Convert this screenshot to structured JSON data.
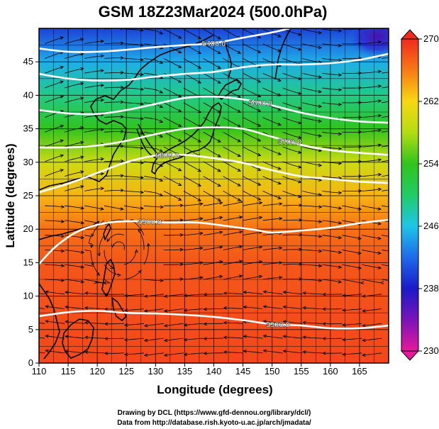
{
  "title": "GSM 18Z23Mar2024 (500.0hPa)",
  "xlabel": "Longitude (degrees)",
  "ylabel": "Latitude  (degrees)",
  "credits": [
    "Drawing by DCL (https://www.gfd-dennou.org/library/dcl/)",
    "Data from http://database.rish.kyoto-u.ac.jp/arch/jmadata/"
  ],
  "colors": {
    "contour": "#ffffff",
    "coast": "#000000",
    "streamline": "#000000",
    "grid": "#000000"
  },
  "chart_data": {
    "type": "heatmap",
    "xlim": [
      110,
      170
    ],
    "ylim": [
      0,
      50
    ],
    "x_ticks": [
      110,
      115,
      120,
      125,
      130,
      135,
      140,
      145,
      150,
      155,
      160,
      165
    ],
    "y_ticks": [
      0,
      5,
      10,
      15,
      20,
      25,
      30,
      35,
      40,
      45
    ],
    "grid": true,
    "fill_variable_range": [
      230,
      270
    ],
    "colorbar": {
      "ticks": [
        230,
        238,
        246,
        254,
        262,
        270
      ],
      "labels": [
        "230",
        "238",
        "246",
        "254",
        "262",
        "270"
      ],
      "stops": [
        {
          "v": 230,
          "c": "#e6199b"
        },
        {
          "v": 234,
          "c": "#7a14b8"
        },
        {
          "v": 238,
          "c": "#1a1ac8"
        },
        {
          "v": 242,
          "c": "#1f6aea"
        },
        {
          "v": 246,
          "c": "#1ec5e8"
        },
        {
          "v": 250,
          "c": "#22cc66"
        },
        {
          "v": 254,
          "c": "#30c41c"
        },
        {
          "v": 258,
          "c": "#b3dc12"
        },
        {
          "v": 262,
          "c": "#f7d812"
        },
        {
          "v": 266,
          "c": "#f77a14"
        },
        {
          "v": 270,
          "c": "#f02a1e"
        }
      ]
    },
    "field_profile": [
      {
        "lat": 0,
        "value": 268.5
      },
      {
        "lat": 5,
        "value": 268.3
      },
      {
        "lat": 10,
        "value": 268.0
      },
      {
        "lat": 15,
        "value": 267.8
      },
      {
        "lat": 20,
        "value": 266.5
      },
      {
        "lat": 25,
        "value": 263.5
      },
      {
        "lat": 30,
        "value": 259.5
      },
      {
        "lat": 35,
        "value": 254.0
      },
      {
        "lat": 40,
        "value": 249.0
      },
      {
        "lat": 45,
        "value": 245.0
      },
      {
        "lat": 50,
        "value": 240.0
      }
    ],
    "contours": [
      {
        "label": "5400.0",
        "label_lon": 140,
        "points": [
          [
            110,
            47
          ],
          [
            115,
            46.5
          ],
          [
            120,
            46.5
          ],
          [
            125,
            46.8
          ],
          [
            130,
            47.2
          ],
          [
            135,
            47.5
          ],
          [
            140,
            47.8
          ],
          [
            145,
            48.6
          ],
          [
            150,
            49.4
          ],
          [
            153,
            50
          ]
        ]
      },
      {
        "label": "",
        "label_lon": null,
        "points": [
          [
            110,
            43.2
          ],
          [
            115,
            42.5
          ],
          [
            120,
            42.2
          ],
          [
            125,
            42.3
          ],
          [
            130,
            42.8
          ],
          [
            135,
            43.2
          ],
          [
            140,
            43.5
          ],
          [
            145,
            44.2
          ],
          [
            150,
            44.6
          ],
          [
            155,
            44.6
          ],
          [
            160,
            44.8
          ],
          [
            165,
            45.3
          ],
          [
            170,
            46.2
          ]
        ]
      },
      {
        "label": "5600.0",
        "label_lon": 148,
        "points": [
          [
            110,
            37.8
          ],
          [
            115,
            37.3
          ],
          [
            120,
            37.2
          ],
          [
            125,
            37.8
          ],
          [
            130,
            38.7
          ],
          [
            135,
            39.6
          ],
          [
            140,
            39.8
          ],
          [
            145,
            39.4
          ],
          [
            150,
            38.5
          ],
          [
            155,
            37.4
          ],
          [
            160,
            36.6
          ],
          [
            165,
            36.1
          ],
          [
            170,
            35.9
          ]
        ]
      },
      {
        "label": "5700.0",
        "label_lon": 153,
        "points": [
          [
            110,
            32.2
          ],
          [
            115,
            32.2
          ],
          [
            120,
            32.5
          ],
          [
            125,
            33.2
          ],
          [
            130,
            34.2
          ],
          [
            135,
            35.0
          ],
          [
            140,
            35.2
          ],
          [
            145,
            35.0
          ],
          [
            150,
            33.8
          ],
          [
            155,
            32.6
          ],
          [
            160,
            31.8
          ],
          [
            165,
            31.4
          ],
          [
            170,
            31.1
          ]
        ]
      },
      {
        "label": "5800.0",
        "label_lon": 132,
        "points": [
          [
            110,
            25.5
          ],
          [
            115,
            26.8
          ],
          [
            120,
            28.4
          ],
          [
            125,
            30.0
          ],
          [
            130,
            31.0
          ],
          [
            135,
            31.1
          ],
          [
            140,
            30.6
          ],
          [
            145,
            29.9
          ],
          [
            150,
            28.8
          ],
          [
            155,
            27.9
          ],
          [
            160,
            27.5
          ],
          [
            165,
            27.1
          ],
          [
            170,
            26.9
          ]
        ]
      },
      {
        "label": "5900.0",
        "label_lon": 129,
        "points": [
          [
            110,
            14.8
          ],
          [
            113,
            17.5
          ],
          [
            117,
            19.8
          ],
          [
            122,
            21.0
          ],
          [
            127,
            21.2
          ],
          [
            132,
            21.0
          ],
          [
            137,
            21.0
          ],
          [
            142,
            20.5
          ],
          [
            147,
            19.9
          ],
          [
            150,
            19.5
          ],
          [
            155,
            19.8
          ],
          [
            160,
            20.2
          ],
          [
            165,
            20.9
          ],
          [
            170,
            21.4
          ]
        ]
      },
      {
        "label": "5900.0",
        "label_lon": 151,
        "points": [
          [
            110,
            7.0
          ],
          [
            115,
            7.6
          ],
          [
            120,
            7.8
          ],
          [
            125,
            7.5
          ],
          [
            130,
            7.4
          ],
          [
            135,
            7.2
          ],
          [
            140,
            6.9
          ],
          [
            145,
            6.4
          ],
          [
            150,
            5.8
          ],
          [
            155,
            5.6
          ],
          [
            160,
            5.2
          ],
          [
            165,
            5.2
          ],
          [
            170,
            5.6
          ]
        ]
      }
    ]
  }
}
